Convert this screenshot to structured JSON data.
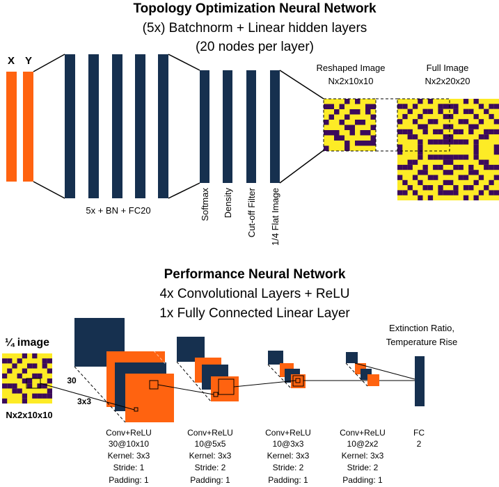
{
  "colors": {
    "navy": "#16304f",
    "orange": "#ff6310",
    "yellow": "#fdeb26",
    "purple": "#3b0a5c",
    "line": "#000000"
  },
  "top": {
    "title": "Topology Optimization Neural Network",
    "subtitle1": "(5x) Batchnorm + Linear hidden layers",
    "subtitle2": "(20 nodes per layer)",
    "input_x": "X",
    "input_y": "Y",
    "hidden_label": "5x + BN + FC20",
    "ops": [
      "Softmax",
      "Density",
      "Cut-off Filter",
      "1/4 Flat Image"
    ],
    "reshaped_title": "Reshaped Image",
    "reshaped_dims": "Nx2x10x10",
    "full_title": "Full Image",
    "full_dims": "Nx2x20x20"
  },
  "bottom": {
    "title": "Performance Neural Network",
    "subtitle1": "4x Convolutional Layers + ReLU",
    "subtitle2": "1x Fully Connected Linear Layer",
    "quarter_title": "¼ image",
    "quarter_dims": "Nx2x10x10",
    "dim_30": "30",
    "dim_3x3": "3x3",
    "output_label1": "Extinction Ratio,",
    "output_label2": "Temperature Rise",
    "layers": [
      {
        "name": "Conv+ReLU",
        "shape": "30@10x10",
        "kernel": "Kernel: 3x3",
        "stride": "Stride: 1",
        "padding": "Padding: 1"
      },
      {
        "name": "Conv+ReLU",
        "shape": "10@5x5",
        "kernel": "Kernel: 3x3",
        "stride": "Stride: 2",
        "padding": "Padding: 1"
      },
      {
        "name": "Conv+ReLU",
        "shape": "10@3x3",
        "kernel": "Kernel: 3x3",
        "stride": "Stride: 2",
        "padding": "Padding: 1"
      },
      {
        "name": "Conv+ReLU",
        "shape": "10@2x2",
        "kernel": "Kernel: 3x3",
        "stride": "Stride: 2",
        "padding": "Padding: 1"
      }
    ],
    "fc_name": "FC",
    "fc_size": "2"
  }
}
